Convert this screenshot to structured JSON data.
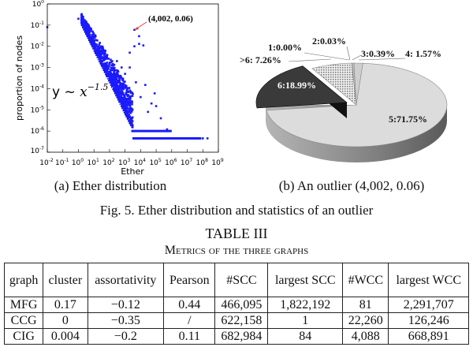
{
  "chart_data": [
    {
      "type": "scatter",
      "xlabel": "Ether",
      "ylabel": "proportion of nodes",
      "xscale": "log",
      "yscale": "log",
      "xlim": [
        0.01,
        1000000000
      ],
      "ylim": [
        1e-07,
        1
      ],
      "x_tick_exponents": [
        "-2",
        "-1",
        "0",
        "1",
        "2",
        "3",
        "4",
        "5",
        "6",
        "7",
        "8",
        "9"
      ],
      "y_tick_exponents": [
        "0",
        "-1",
        "-2",
        "-3",
        "-4",
        "-5",
        "-6",
        "-7"
      ],
      "tick_base": "10",
      "marker_color": "#1a1aff",
      "fit": {
        "label_prefix": "y ~ ",
        "label_var": "x",
        "label_exp": "−1.5",
        "exponent": -1.5,
        "x_range": [
          1.5,
          2500
        ]
      },
      "annotation": {
        "text": "(4,002, 0.06)",
        "point": [
          4002,
          0.06
        ],
        "arrow_color": "#e03030"
      },
      "points": [
        [
          0.01,
          0.08
        ],
        [
          1,
          0.2
        ],
        [
          4002,
          0.06
        ],
        [
          8000,
          0.03
        ],
        [
          8000,
          0.013
        ],
        [
          15000,
          0.011
        ],
        [
          4000,
          0.01
        ],
        [
          2000,
          0.005
        ],
        [
          50,
          0.005
        ],
        [
          150,
          0.002
        ],
        [
          300,
          0.002
        ],
        [
          2000,
          0.001
        ],
        [
          600,
          0.001
        ],
        [
          1000,
          0.0005
        ],
        [
          700,
          0.0003
        ],
        [
          20000,
          0.00015
        ],
        [
          5000,
          0.0002
        ],
        [
          80000,
          6e-05
        ],
        [
          10000,
          4e-05
        ],
        [
          100000,
          1.5e-05
        ],
        [
          50000,
          2e-05
        ],
        [
          30000,
          8e-06
        ],
        [
          200000,
          4e-06
        ],
        [
          500000,
          1.2e-06
        ],
        [
          600000,
          1e-06
        ],
        [
          200000000,
          4.5e-07
        ],
        [
          100000000,
          4.5e-07
        ]
      ],
      "bands": [
        {
          "y": 1e-06,
          "x_from": 2500,
          "x_to": 1000000
        },
        {
          "y": 4.5e-07,
          "x_from": 3000,
          "x_to": 80000000
        }
      ]
    },
    {
      "type": "pie",
      "style": "3d-exploded",
      "slices": [
        {
          "label": "1:0.00%",
          "category": "1",
          "value": 0.0,
          "fill": "#ffffff"
        },
        {
          "label": "2:0.03%",
          "category": "2",
          "value": 0.03,
          "fill": "#ffffff"
        },
        {
          "label": "3:0.39%",
          "category": "3",
          "value": 0.39,
          "fill": "#bbbbbb"
        },
        {
          "label": "4: 1.57%",
          "category": "4",
          "value": 1.57,
          "fill": "#cfcfcf"
        },
        {
          "label": "5:71.75%",
          "category": "5",
          "value": 71.75,
          "fill": "#dcdcdc"
        },
        {
          "label": "6:18.99%",
          "category": "6",
          "value": 18.99,
          "fill": "#3a3a3a"
        },
        {
          "label": ">6: 7.26%",
          "category": ">6",
          "value": 7.26,
          "fill": "#bdbdbd"
        }
      ]
    }
  ],
  "captions": {
    "a": "(a) Ether distribution",
    "b": "(b) An outlier (4,002, 0.06)",
    "figure": "Fig. 5.  Ether distribution and statistics of an outlier"
  },
  "table": {
    "number": "TABLE III",
    "title": "Metrics of the three graphs",
    "headers": [
      "graph",
      "cluster",
      "assortativity",
      "Pearson",
      "#SCC",
      "largest SCC",
      "#WCC",
      "largest WCC"
    ],
    "rows": [
      [
        "MFG",
        "0.17",
        "−0.12",
        "0.44",
        "466,095",
        "1,822,192",
        "81",
        "2,291,707"
      ],
      [
        "CCG",
        "0",
        "−0.35",
        "/",
        "622,158",
        "1",
        "22,260",
        "126,246"
      ],
      [
        "CIG",
        "0.004",
        "−0.2",
        "0.11",
        "682,984",
        "84",
        "4,088",
        "668,891"
      ]
    ]
  }
}
